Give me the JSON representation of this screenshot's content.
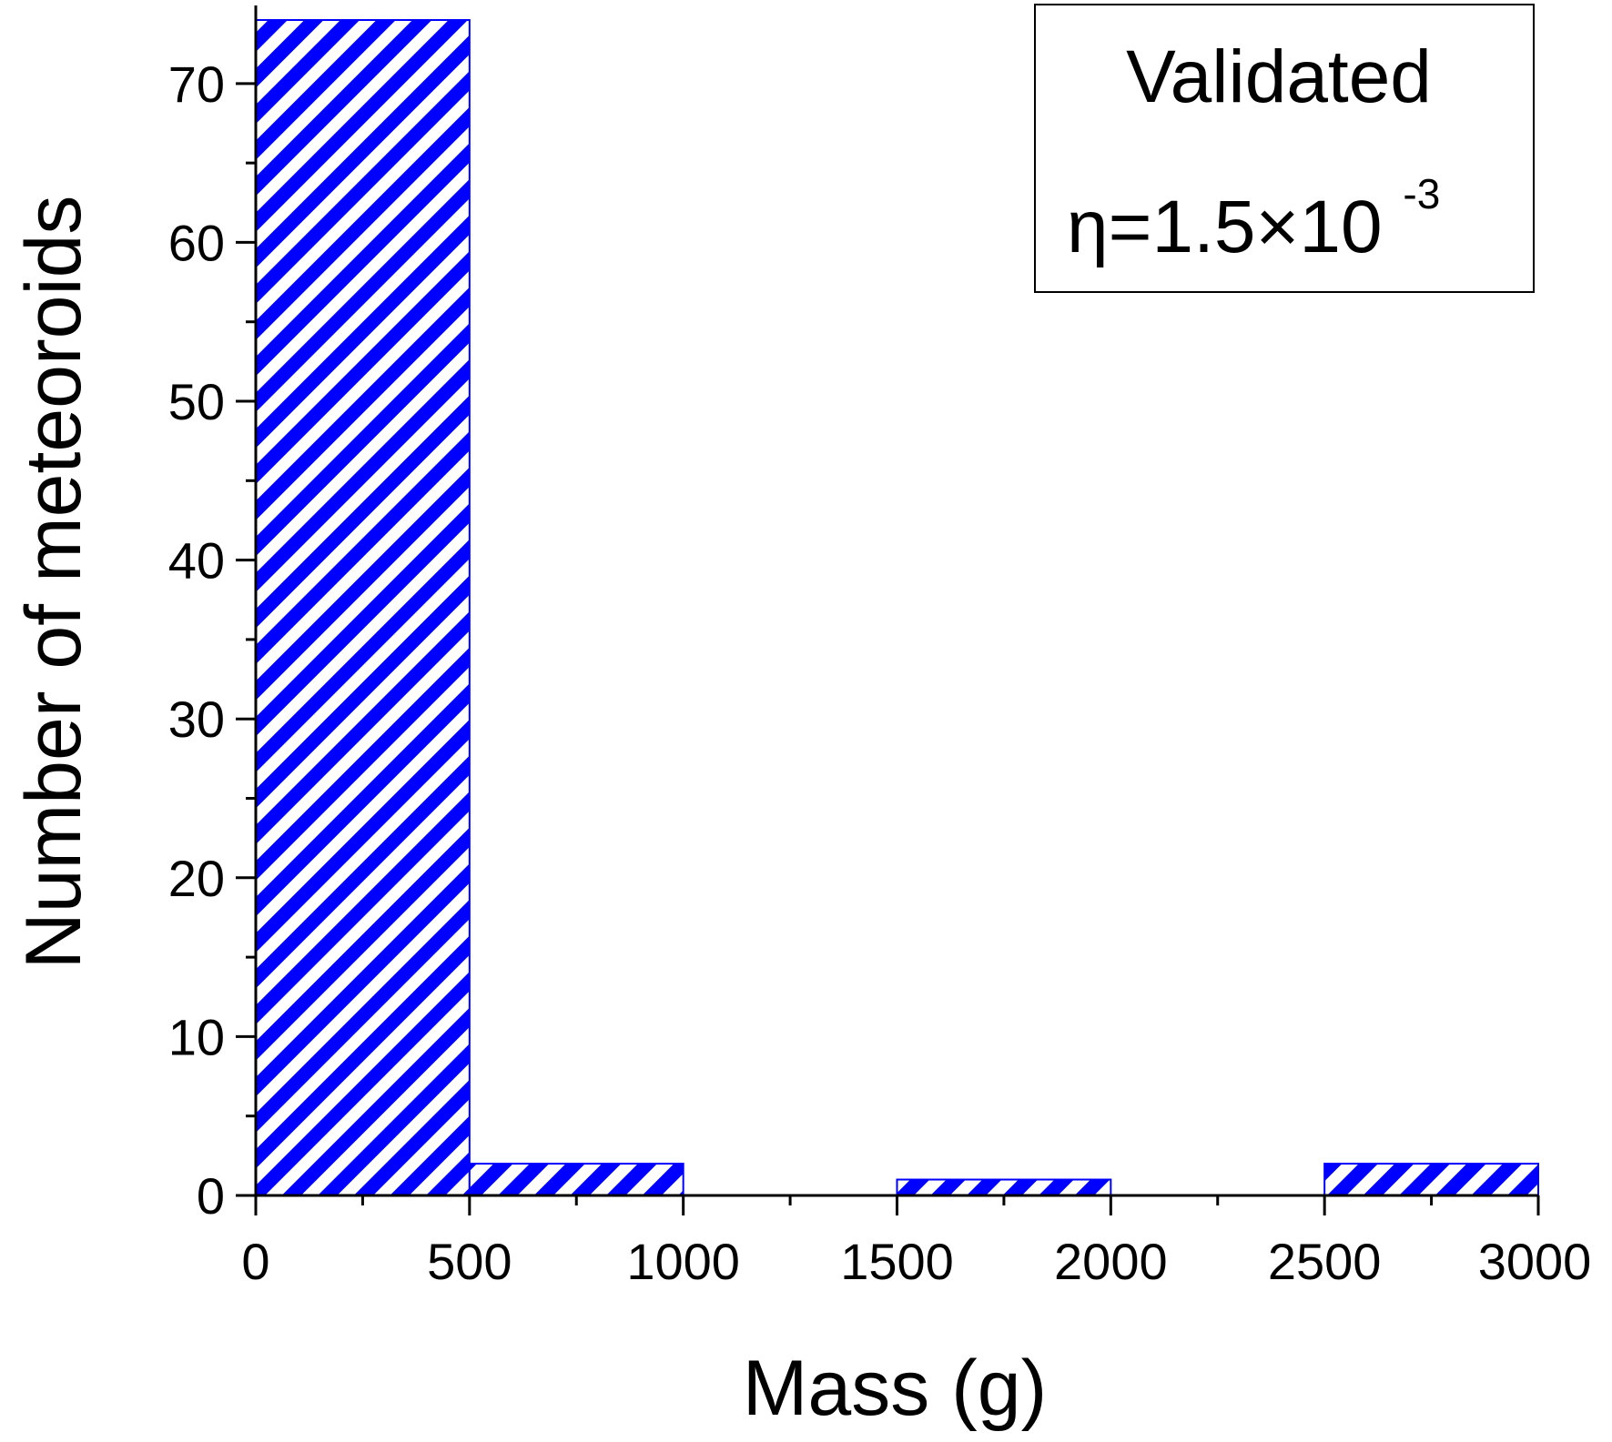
{
  "chart_data": {
    "type": "bar",
    "subtype": "histogram",
    "title": "",
    "xlabel": "Mass (g)",
    "ylabel": "Number of meteoroids",
    "xlim": [
      0,
      3000
    ],
    "ylim": [
      0,
      74
    ],
    "bin_width": 500,
    "bins": [
      {
        "start": 0,
        "end": 500,
        "count": 74
      },
      {
        "start": 500,
        "end": 1000,
        "count": 2
      },
      {
        "start": 1000,
        "end": 1500,
        "count": 0
      },
      {
        "start": 1500,
        "end": 2000,
        "count": 1
      },
      {
        "start": 2000,
        "end": 2500,
        "count": 0
      },
      {
        "start": 2500,
        "end": 3000,
        "count": 2
      }
    ],
    "x_ticks": [
      "0",
      "500",
      "1000",
      "1500",
      "2000",
      "2500",
      "3000"
    ],
    "x_tick_values": [
      0,
      500,
      1000,
      1500,
      2000,
      2500,
      3000
    ],
    "y_ticks": [
      "0",
      "10",
      "20",
      "30",
      "40",
      "50",
      "60",
      "70"
    ],
    "y_tick_values": [
      0,
      10,
      20,
      30,
      40,
      50,
      60,
      70
    ],
    "y_minor_step": 5,
    "fill_pattern": "diagonal-hatch",
    "bar_color": "#0000ff",
    "legend": {
      "title": "Validated",
      "eta_prefix": "η=1.5×10",
      "eta_exponent": "-3",
      "placement": "top-right"
    }
  }
}
